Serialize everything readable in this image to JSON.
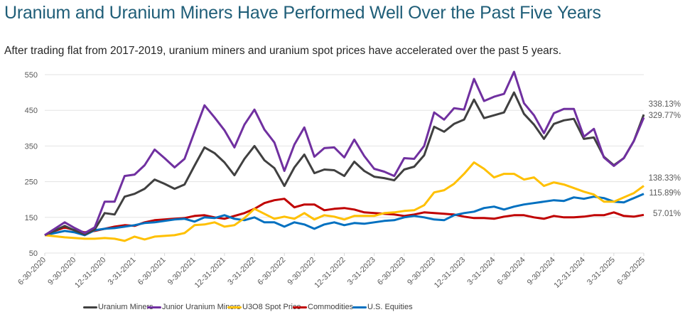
{
  "header": {
    "title": "Uranium and Uranium Miners Have Performed Well Over the Past Five Years",
    "subtitle": "After trading flat from 2017-2019, uranium miners and uranium spot prices have accelerated over the past 5 years."
  },
  "chart_data": {
    "type": "line",
    "title": "Uranium and Uranium Miners Have Performed Well Over the Past Five Years",
    "subtitle": "After trading flat from 2017-2019, uranium miners and uranium spot prices have accelerated over the past 5 years.",
    "xlabel": "",
    "ylabel": "",
    "ylim": [
      50,
      550
    ],
    "yticks": [
      50,
      150,
      250,
      350,
      450,
      550
    ],
    "grid": true,
    "legend": "bottom",
    "x_start": "6-30-2020",
    "x_end": "6-30-2025",
    "x_frequency": "monthly",
    "xtick_labels": [
      "6-30-2020",
      "9-30-2020",
      "12-31-2020",
      "3-31-2021",
      "6-30-2021",
      "9-30-2021",
      "12-31-2021",
      "3-31-2022",
      "6-30-2022",
      "9-30-2022",
      "12-31-2022",
      "3-31-2023",
      "6-30-2023",
      "9-30-2023",
      "12-31-2023",
      "3-31-2024",
      "6-30-2024",
      "9-30-2024",
      "12-31-2024",
      "3-31-2025",
      "6-30-2025"
    ],
    "series": [
      {
        "name": "Uranium Miners",
        "color": "#404040",
        "end_label": "338.13%",
        "values": [
          100,
          113,
          126,
          113,
          102,
          116,
          162,
          158,
          208,
          216,
          230,
          256,
          244,
          230,
          242,
          295,
          346,
          330,
          304,
          268,
          314,
          350,
          310,
          288,
          238,
          290,
          326,
          274,
          284,
          282,
          266,
          306,
          280,
          264,
          260,
          254,
          284,
          292,
          324,
          404,
          390,
          412,
          424,
          480,
          428,
          436,
          444,
          500,
          440,
          410,
          370,
          412,
          422,
          426,
          370,
          374,
          320,
          296,
          316,
          364,
          438.13
        ]
      },
      {
        "name": "Junior Uranium Miners",
        "color": "#7030a0",
        "end_label": "329.77%",
        "values": [
          100,
          118,
          136,
          120,
          106,
          122,
          194,
          194,
          266,
          270,
          296,
          340,
          316,
          290,
          314,
          390,
          464,
          430,
          394,
          346,
          410,
          452,
          396,
          360,
          280,
          354,
          402,
          320,
          344,
          346,
          318,
          368,
          322,
          286,
          278,
          266,
          316,
          314,
          350,
          444,
          424,
          456,
          452,
          538,
          476,
          488,
          496,
          558,
          470,
          436,
          386,
          442,
          454,
          454,
          376,
          398,
          318,
          294,
          316,
          364,
          429.77
        ]
      },
      {
        "name": "U3O8 Spot Price",
        "color": "#ffc000",
        "end_label": "138.33%",
        "values": [
          100,
          97,
          94,
          92,
          90,
          90,
          92,
          90,
          84,
          96,
          88,
          96,
          98,
          100,
          106,
          128,
          130,
          136,
          124,
          128,
          148,
          174,
          160,
          146,
          152,
          146,
          162,
          144,
          156,
          152,
          144,
          154,
          154,
          154,
          162,
          164,
          168,
          170,
          184,
          220,
          226,
          244,
          272,
          304,
          286,
          262,
          272,
          272,
          256,
          262,
          238,
          248,
          242,
          232,
          222,
          214,
          194,
          194,
          206,
          218,
          238.33
        ]
      },
      {
        "name": "Commodities",
        "color": "#c00000",
        "end_label": "57.01%",
        "values": [
          100,
          112,
          122,
          114,
          108,
          112,
          118,
          124,
          128,
          126,
          136,
          142,
          144,
          146,
          148,
          154,
          156,
          150,
          146,
          154,
          162,
          174,
          190,
          198,
          202,
          178,
          186,
          186,
          170,
          174,
          176,
          172,
          164,
          162,
          160,
          158,
          154,
          158,
          164,
          162,
          160,
          158,
          152,
          148,
          148,
          146,
          152,
          156,
          156,
          150,
          146,
          154,
          150,
          150,
          152,
          156,
          156,
          164,
          154,
          152,
          157.01
        ]
      },
      {
        "name": "U.S. Equities",
        "color": "#0070c0",
        "end_label": "115.89%",
        "values": [
          100,
          106,
          112,
          108,
          100,
          114,
          118,
          120,
          124,
          128,
          134,
          136,
          140,
          144,
          146,
          138,
          150,
          148,
          156,
          146,
          142,
          150,
          136,
          136,
          124,
          136,
          130,
          118,
          130,
          136,
          128,
          134,
          132,
          136,
          140,
          142,
          150,
          154,
          150,
          144,
          142,
          156,
          162,
          166,
          176,
          180,
          172,
          180,
          186,
          190,
          194,
          198,
          196,
          206,
          202,
          208,
          204,
          194,
          192,
          204,
          215.89
        ]
      }
    ]
  }
}
